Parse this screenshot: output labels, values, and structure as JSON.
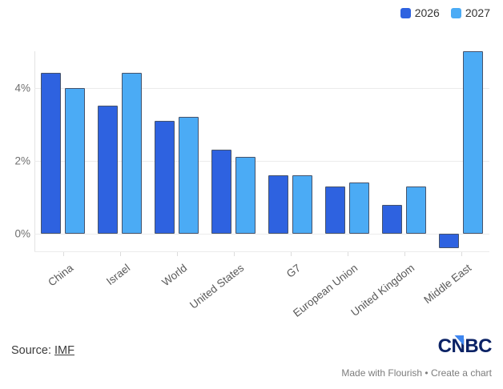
{
  "chart_data": {
    "type": "bar",
    "title": "",
    "categories": [
      "China",
      "Israel",
      "World",
      "United States",
      "G7",
      "European Union",
      "United Kingdom",
      "Middle East"
    ],
    "series": [
      {
        "name": "2026",
        "color": "#2e62e0",
        "stroke": "#46536b",
        "values": [
          4.4,
          3.5,
          3.1,
          2.3,
          1.6,
          1.3,
          0.8,
          -0.4
        ]
      },
      {
        "name": "2027",
        "color": "#4babf5",
        "stroke": "#46536b",
        "values": [
          4.0,
          4.4,
          3.2,
          2.1,
          1.6,
          1.4,
          1.3,
          5.0
        ]
      }
    ],
    "xlabel": "",
    "ylabel": "",
    "y_ticks": [
      {
        "value": 0,
        "label": "0%"
      },
      {
        "value": 2,
        "label": "2%"
      },
      {
        "value": 4,
        "label": "4%"
      }
    ],
    "ylim": [
      -0.5,
      5.0
    ],
    "grid": "horizontal",
    "legend_position": "top-right"
  },
  "footer": {
    "source_prefix": "Source: ",
    "source_link": "IMF",
    "logo_c": "C",
    "logo_n": "N",
    "logo_bc": "BC",
    "credit_made": "Made with Flourish",
    "credit_sep": " • ",
    "credit_create": "Create a chart"
  }
}
